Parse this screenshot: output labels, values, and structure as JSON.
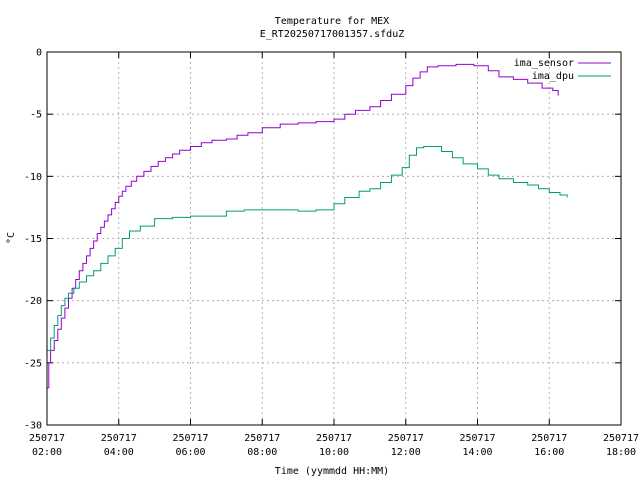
{
  "chart_data": {
    "type": "line",
    "title": "Temperature for MEX",
    "subtitle": "E_RT20250717001357.sfduZ",
    "xlabel": "Time (yymmdd HH:MM)",
    "ylabel": "°C",
    "xlim": [
      2.0,
      18.0
    ],
    "ylim": [
      -30,
      0
    ],
    "x_ticks": [
      {
        "x": 2,
        "date": "250717",
        "time": "02:00"
      },
      {
        "x": 4,
        "date": "250717",
        "time": "04:00"
      },
      {
        "x": 6,
        "date": "250717",
        "time": "06:00"
      },
      {
        "x": 8,
        "date": "250717",
        "time": "08:00"
      },
      {
        "x": 10,
        "date": "250717",
        "time": "10:00"
      },
      {
        "x": 12,
        "date": "250717",
        "time": "12:00"
      },
      {
        "x": 14,
        "date": "250717",
        "time": "14:00"
      },
      {
        "x": 16,
        "date": "250717",
        "time": "16:00"
      },
      {
        "x": 18,
        "date": "250717",
        "time": "18:00"
      }
    ],
    "y_ticks": [
      0,
      -5,
      -10,
      -15,
      -20,
      -25,
      -30
    ],
    "grid": true,
    "legend_position": "top-right",
    "series": [
      {
        "name": "ima_sensor",
        "color": "#9400d3",
        "points": [
          [
            2.0,
            -27.0
          ],
          [
            2.05,
            -25.0
          ],
          [
            2.1,
            -24.0
          ],
          [
            2.2,
            -23.2
          ],
          [
            2.3,
            -22.3
          ],
          [
            2.4,
            -21.4
          ],
          [
            2.5,
            -20.6
          ],
          [
            2.6,
            -19.8
          ],
          [
            2.7,
            -19.0
          ],
          [
            2.8,
            -18.3
          ],
          [
            2.9,
            -17.6
          ],
          [
            3.0,
            -17.0
          ],
          [
            3.1,
            -16.4
          ],
          [
            3.2,
            -15.8
          ],
          [
            3.3,
            -15.2
          ],
          [
            3.4,
            -14.6
          ],
          [
            3.5,
            -14.1
          ],
          [
            3.6,
            -13.6
          ],
          [
            3.7,
            -13.1
          ],
          [
            3.8,
            -12.6
          ],
          [
            3.9,
            -12.1
          ],
          [
            4.0,
            -11.6
          ],
          [
            4.1,
            -11.2
          ],
          [
            4.2,
            -10.8
          ],
          [
            4.35,
            -10.4
          ],
          [
            4.5,
            -10.0
          ],
          [
            4.7,
            -9.6
          ],
          [
            4.9,
            -9.2
          ],
          [
            5.1,
            -8.8
          ],
          [
            5.3,
            -8.5
          ],
          [
            5.5,
            -8.2
          ],
          [
            5.7,
            -7.9
          ],
          [
            6.0,
            -7.6
          ],
          [
            6.3,
            -7.3
          ],
          [
            6.6,
            -7.1
          ],
          [
            7.0,
            -7.0
          ],
          [
            7.3,
            -6.7
          ],
          [
            7.6,
            -6.5
          ],
          [
            8.0,
            -6.1
          ],
          [
            8.5,
            -5.8
          ],
          [
            9.0,
            -5.7
          ],
          [
            9.5,
            -5.6
          ],
          [
            10.0,
            -5.4
          ],
          [
            10.3,
            -5.0
          ],
          [
            10.6,
            -4.7
          ],
          [
            11.0,
            -4.4
          ],
          [
            11.3,
            -3.9
          ],
          [
            11.6,
            -3.4
          ],
          [
            12.0,
            -2.7
          ],
          [
            12.2,
            -2.1
          ],
          [
            12.4,
            -1.6
          ],
          [
            12.6,
            -1.2
          ],
          [
            12.9,
            -1.1
          ],
          [
            13.4,
            -1.0
          ],
          [
            13.9,
            -1.1
          ],
          [
            14.3,
            -1.5
          ],
          [
            14.6,
            -2.0
          ],
          [
            15.0,
            -2.2
          ],
          [
            15.4,
            -2.5
          ],
          [
            15.8,
            -2.9
          ],
          [
            16.1,
            -3.1
          ],
          [
            16.25,
            -3.5
          ]
        ]
      },
      {
        "name": "ima_dpu",
        "color": "#009e73",
        "points": [
          [
            2.0,
            -24.0
          ],
          [
            2.1,
            -23.0
          ],
          [
            2.2,
            -22.0
          ],
          [
            2.3,
            -21.2
          ],
          [
            2.4,
            -20.4
          ],
          [
            2.5,
            -19.8
          ],
          [
            2.6,
            -19.4
          ],
          [
            2.75,
            -19.0
          ],
          [
            2.9,
            -18.5
          ],
          [
            3.1,
            -18.0
          ],
          [
            3.3,
            -17.6
          ],
          [
            3.5,
            -17.0
          ],
          [
            3.7,
            -16.4
          ],
          [
            3.9,
            -15.8
          ],
          [
            4.1,
            -15.0
          ],
          [
            4.3,
            -14.4
          ],
          [
            4.6,
            -14.0
          ],
          [
            5.0,
            -13.4
          ],
          [
            5.5,
            -13.3
          ],
          [
            6.0,
            -13.2
          ],
          [
            6.5,
            -13.2
          ],
          [
            7.0,
            -12.8
          ],
          [
            7.5,
            -12.7
          ],
          [
            8.0,
            -12.7
          ],
          [
            8.5,
            -12.7
          ],
          [
            9.0,
            -12.8
          ],
          [
            9.5,
            -12.7
          ],
          [
            10.0,
            -12.2
          ],
          [
            10.3,
            -11.7
          ],
          [
            10.7,
            -11.2
          ],
          [
            11.0,
            -11.0
          ],
          [
            11.3,
            -10.5
          ],
          [
            11.6,
            -9.9
          ],
          [
            11.9,
            -9.3
          ],
          [
            12.1,
            -8.3
          ],
          [
            12.3,
            -7.7
          ],
          [
            12.5,
            -7.6
          ],
          [
            12.8,
            -7.6
          ],
          [
            13.0,
            -8.0
          ],
          [
            13.3,
            -8.5
          ],
          [
            13.6,
            -9.0
          ],
          [
            14.0,
            -9.4
          ],
          [
            14.3,
            -9.9
          ],
          [
            14.6,
            -10.2
          ],
          [
            15.0,
            -10.5
          ],
          [
            15.4,
            -10.7
          ],
          [
            15.7,
            -11.0
          ],
          [
            16.0,
            -11.3
          ],
          [
            16.3,
            -11.5
          ],
          [
            16.5,
            -11.7
          ]
        ]
      }
    ]
  }
}
